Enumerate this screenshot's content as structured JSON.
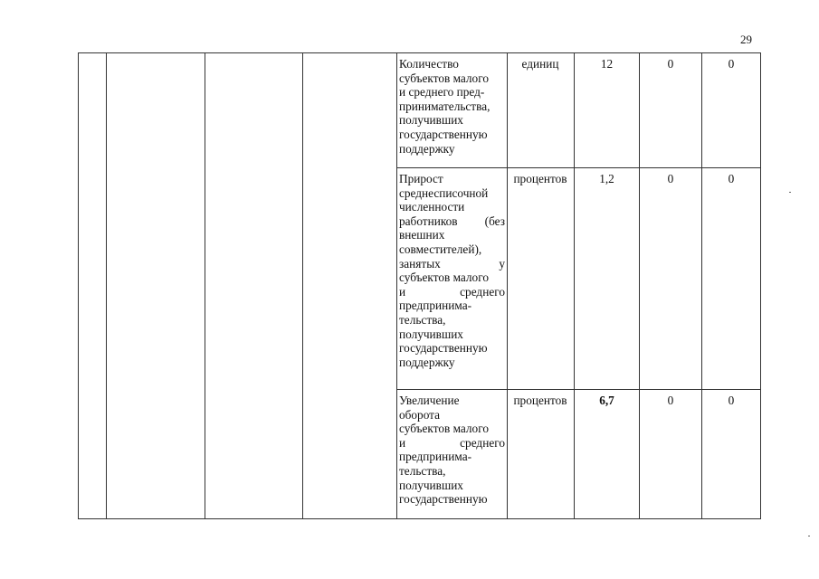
{
  "page_number": "29",
  "table": {
    "rows": [
      {
        "indicator_lines": [
          "Количество",
          "субъектов малого",
          "и среднего пред-",
          "принимательства,",
          "получивших",
          "государственную",
          "поддержку"
        ],
        "unit": "единиц",
        "value_1": "12",
        "value_2": "0",
        "value_3": "0"
      },
      {
        "indicator_lines": [
          "Прирост",
          "среднесписочной",
          "численности",
          "работников (без",
          "внешних",
          "совместителей),",
          "занятых у",
          "субъектов малого",
          "и среднего",
          "предпринима-",
          "тельства,",
          "получивших",
          "государственную",
          "поддержку"
        ],
        "unit": "процентов",
        "value_1": "1,2",
        "value_2": "0",
        "value_3": "0"
      },
      {
        "indicator_lines": [
          "Увеличение",
          "оборота",
          "субъектов малого",
          "и среднего",
          "предпринима-",
          "тельства,",
          "получивших",
          "государственную"
        ],
        "unit": "процентов",
        "value_1": "6,7",
        "value_2": "0",
        "value_3": "0"
      }
    ]
  }
}
